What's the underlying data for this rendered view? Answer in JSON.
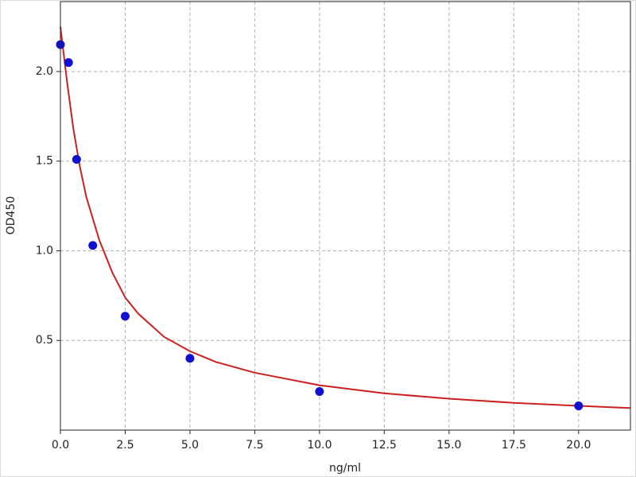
{
  "chart_data": {
    "type": "scatter",
    "x_label": "ng/ml",
    "y_label": "OD450",
    "xlim": [
      0,
      22
    ],
    "ylim": [
      0,
      2.39
    ],
    "xticks": [
      {
        "value": 0,
        "label": "0.0"
      },
      2.5,
      {
        "value": 5,
        "label": "5.0"
      },
      7.5,
      {
        "value": 10,
        "label": "10.0"
      },
      12.5,
      {
        "value": 15,
        "label": "15.0"
      },
      17.5,
      {
        "value": 20,
        "label": "20.0"
      }
    ],
    "yticks": [
      0.5,
      {
        "value": 1,
        "label": "1.0"
      },
      1.5,
      {
        "value": 2,
        "label": "2.0"
      }
    ],
    "grid": true,
    "points": {
      "color": "#1010d0",
      "x": [
        0,
        0.3125,
        0.625,
        1.25,
        2.5,
        5,
        10,
        20
      ],
      "values": [
        2.15,
        2.05,
        1.51,
        1.03,
        0.635,
        0.4,
        0.215,
        0.135
      ]
    },
    "curve": {
      "color": "#cc2020",
      "x": [
        0,
        0.25,
        0.5,
        0.75,
        1,
        1.5,
        2,
        2.5,
        3,
        4,
        5,
        6,
        7.5,
        10,
        12.5,
        15,
        17.5,
        20,
        22
      ],
      "values": [
        2.25,
        1.95,
        1.68,
        1.47,
        1.3,
        1.06,
        0.88,
        0.74,
        0.65,
        0.52,
        0.44,
        0.38,
        0.32,
        0.25,
        0.205,
        0.175,
        0.152,
        0.135,
        0.123
      ]
    }
  }
}
